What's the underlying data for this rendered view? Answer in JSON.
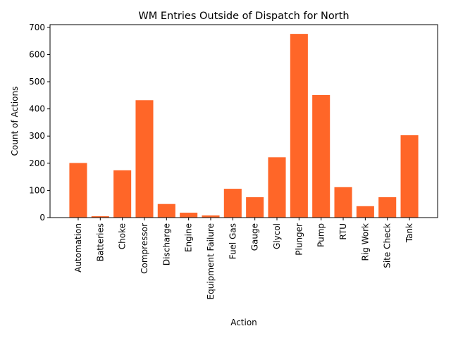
{
  "chart_data": {
    "type": "bar",
    "title": "WM Entries Outside of Dispatch for North",
    "xlabel": "Action",
    "ylabel": "Count of Actions",
    "categories": [
      "Automation",
      "Batteries",
      "Choke",
      "Compressor",
      "Discharge",
      "Engine",
      "Equipment Failure",
      "Fuel Gas",
      "Gauge",
      "Glycol",
      "Plunger",
      "Pump",
      "RTU",
      "Rig Work",
      "Site Check",
      "Tank"
    ],
    "values": [
      201,
      5,
      174,
      432,
      50,
      18,
      8,
      106,
      75,
      222,
      676,
      451,
      112,
      42,
      75,
      303
    ],
    "ylim": [
      0,
      710
    ],
    "yticks": [
      0,
      100,
      200,
      300,
      400,
      500,
      600,
      700
    ],
    "bar_color": "#ff6628",
    "grid": false,
    "legend": "none"
  }
}
